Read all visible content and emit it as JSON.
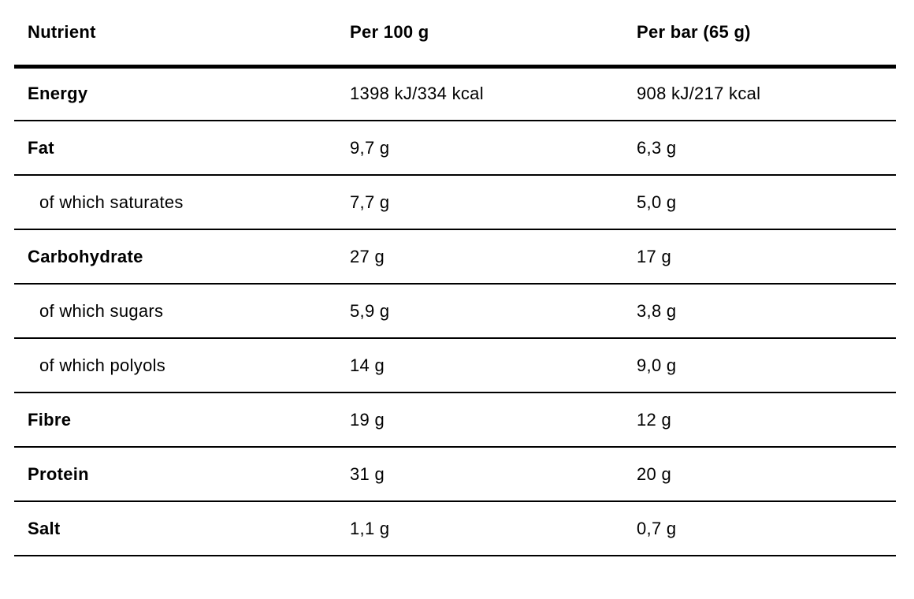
{
  "table": {
    "columns": [
      {
        "label": "Nutrient"
      },
      {
        "label": "Per 100 g"
      },
      {
        "label": "Per bar (65 g)"
      }
    ],
    "rows": [
      {
        "nutrient": "Energy",
        "per100": "1398 kJ/334 kcal",
        "perBar": "908 kJ/217 kcal",
        "bold": true,
        "sub": false
      },
      {
        "nutrient": "Fat",
        "per100": "9,7 g",
        "perBar": "6,3 g",
        "bold": true,
        "sub": false
      },
      {
        "nutrient": "of which saturates",
        "per100": "7,7 g",
        "perBar": "5,0 g",
        "bold": false,
        "sub": true
      },
      {
        "nutrient": "Carbohydrate",
        "per100": "27 g",
        "perBar": "17 g",
        "bold": true,
        "sub": false
      },
      {
        "nutrient": "of which sugars",
        "per100": "5,9 g",
        "perBar": "3,8 g",
        "bold": false,
        "sub": true
      },
      {
        "nutrient": "of which polyols",
        "per100": "14 g",
        "perBar": "9,0 g",
        "bold": false,
        "sub": true
      },
      {
        "nutrient": "Fibre",
        "per100": "19 g",
        "perBar": "12 g",
        "bold": true,
        "sub": false
      },
      {
        "nutrient": "Protein",
        "per100": "31 g",
        "perBar": "20 g",
        "bold": true,
        "sub": false
      },
      {
        "nutrient": "Salt",
        "per100": "1,1 g",
        "perBar": "0,7 g",
        "bold": true,
        "sub": false
      }
    ],
    "colors": {
      "text": "#000000",
      "background": "#ffffff",
      "border": "#000000"
    }
  }
}
